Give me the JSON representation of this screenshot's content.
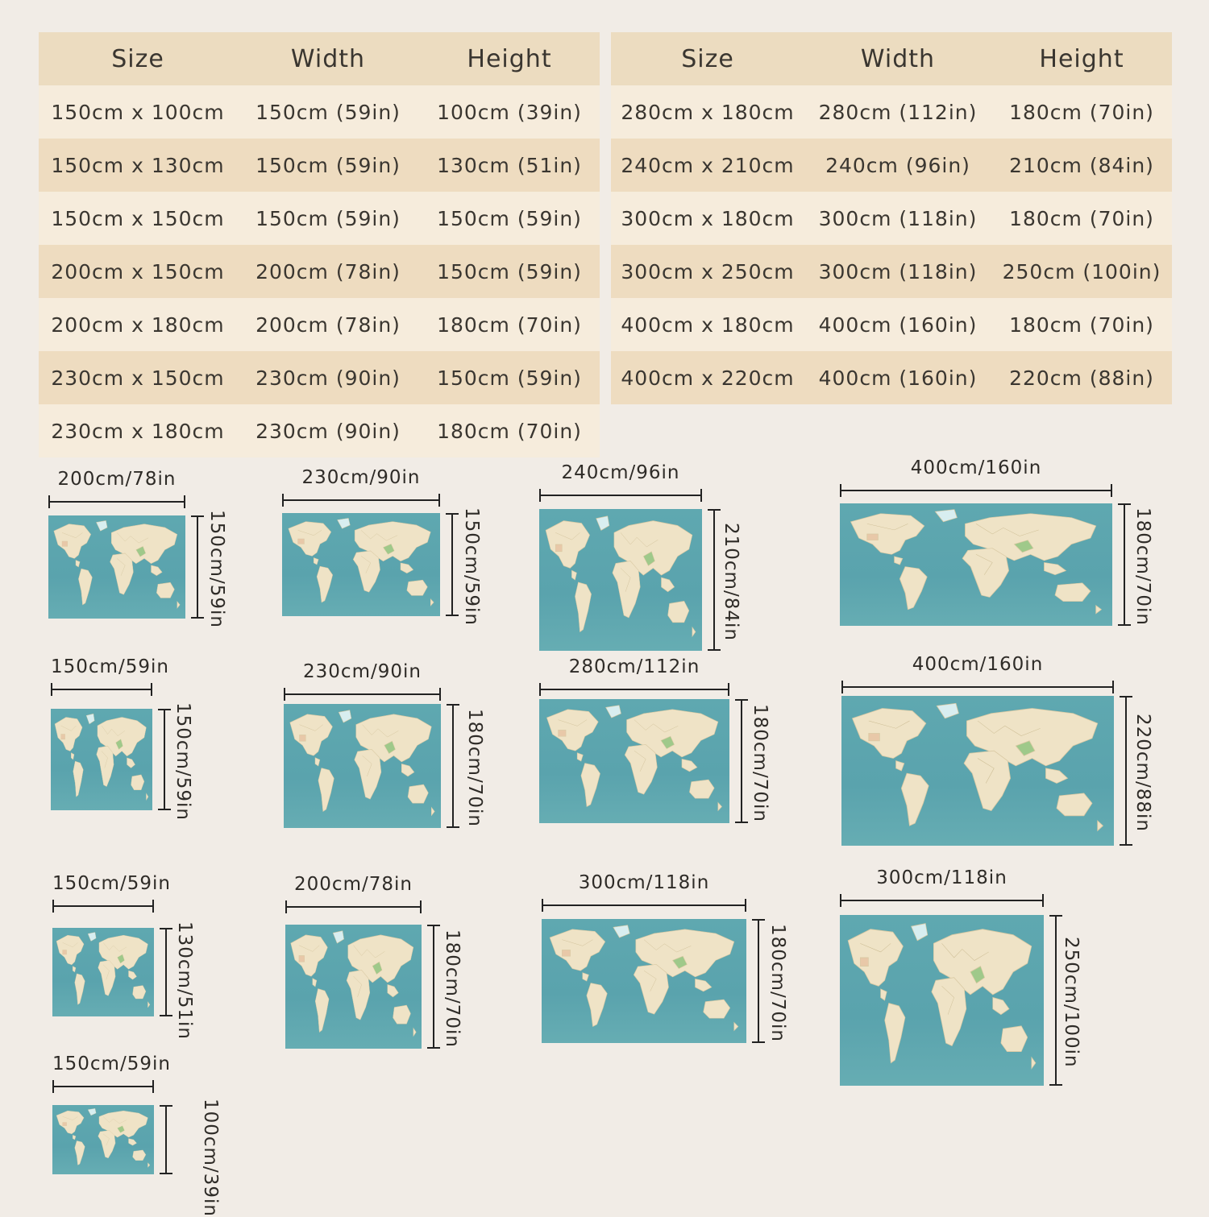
{
  "tables": [
    {
      "headers": [
        "Size",
        "Width",
        "Height"
      ],
      "rows": [
        [
          "150cm x 100cm",
          "150cm (59in)",
          "100cm (39in)"
        ],
        [
          "150cm x 130cm",
          "150cm (59in)",
          "130cm (51in)"
        ],
        [
          "150cm x 150cm",
          "150cm (59in)",
          "150cm (59in)"
        ],
        [
          "200cm x 150cm",
          "200cm (78in)",
          "150cm (59in)"
        ],
        [
          "200cm x 180cm",
          "200cm (78in)",
          "180cm (70in)"
        ],
        [
          "230cm x 150cm",
          "230cm (90in)",
          "150cm (59in)"
        ],
        [
          "230cm x 180cm",
          "230cm (90in)",
          "180cm (70in)"
        ]
      ]
    },
    {
      "headers": [
        "Size",
        "Width",
        "Height"
      ],
      "rows": [
        [
          "280cm x 180cm",
          "280cm (112in)",
          "180cm (70in)"
        ],
        [
          "240cm x 210cm",
          "240cm (96in)",
          "210cm (84in)"
        ],
        [
          "300cm x 180cm",
          "300cm (118in)",
          "180cm (70in)"
        ],
        [
          "300cm x 250cm",
          "300cm (118in)",
          "250cm (100in)"
        ],
        [
          "400cm x 180cm",
          "400cm (160in)",
          "180cm (70in)"
        ],
        [
          "400cm x 220cm",
          "400cm (160in)",
          "220cm (88in)"
        ]
      ]
    }
  ],
  "posters": [
    {
      "width_label": "200cm/78in",
      "height_label": "150cm/59in"
    },
    {
      "width_label": "230cm/90in",
      "height_label": "150cm/59in"
    },
    {
      "width_label": "240cm/96in",
      "height_label": "210cm/84in"
    },
    {
      "width_label": "400cm/160in",
      "height_label": "180cm/70in"
    },
    {
      "width_label": "150cm/59in",
      "height_label": "150cm/59in"
    },
    {
      "width_label": "230cm/90in",
      "height_label": "180cm/70in"
    },
    {
      "width_label": "280cm/112in",
      "height_label": "180cm/70in"
    },
    {
      "width_label": "400cm/160in",
      "height_label": "220cm/88in"
    },
    {
      "width_label": "150cm/59in",
      "height_label": "130cm/51in"
    },
    {
      "width_label": "200cm/78in",
      "height_label": "180cm/70in"
    },
    {
      "width_label": "300cm/118in",
      "height_label": "180cm/70in"
    },
    {
      "width_label": "300cm/118in",
      "height_label": "250cm/100in"
    },
    {
      "width_label": "150cm/59in",
      "height_label": "100cm/39in"
    }
  ],
  "colors": {
    "background": "#f1ece6",
    "table_header": "#ecdcc0",
    "row_light": "#f6ecdc",
    "row_dark": "#eedcc0",
    "ocean": "#5ca6af",
    "land": "#efe3c6"
  }
}
